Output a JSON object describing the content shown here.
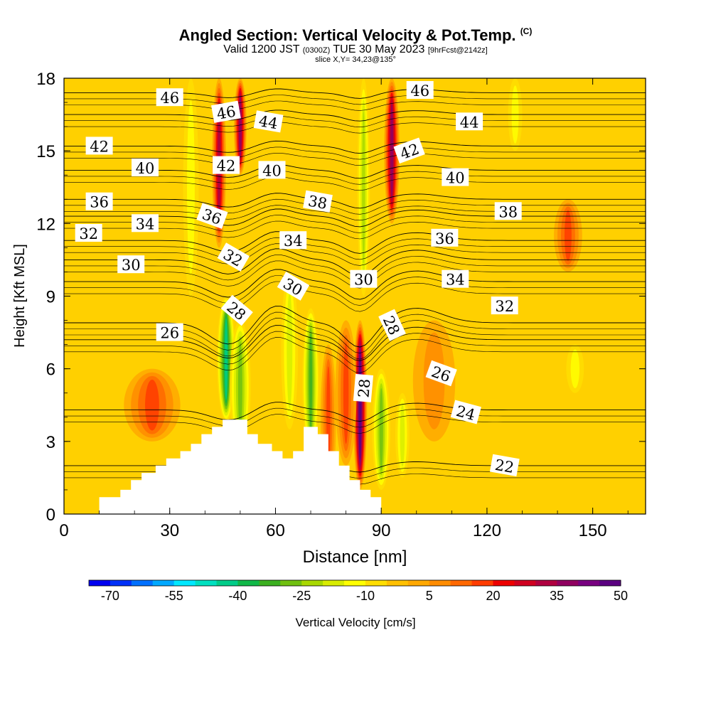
{
  "header": {
    "title": "Angled Section: Vertical Velocity & Pot.Temp.",
    "title_mark": "(C)",
    "valid_label": "Valid 1200 JST",
    "valid_utc": "(0300Z)",
    "valid_date": "TUE 30 May 2023",
    "forecast": "[9hrFcst@2142z]",
    "slice": "slice X,Y= 34,23@135°"
  },
  "chart_data": {
    "type": "heatmap",
    "xlabel": "Distance [nm]",
    "ylabel": "Height [Kft MSL]",
    "xlim": [
      0,
      165
    ],
    "ylim": [
      0,
      18
    ],
    "x_ticks": [
      0,
      30,
      60,
      90,
      120,
      150
    ],
    "y_ticks": [
      0,
      3,
      6,
      9,
      12,
      15,
      18
    ],
    "field_label": "Vertical Velocity [cm/s]",
    "colorbar": {
      "min": -70,
      "step": 5,
      "tick_labels": [
        "-70",
        "-55",
        "-40",
        "-25",
        "-10",
        "5",
        "20",
        "35",
        "50"
      ],
      "colors": [
        "#0000f0",
        "#0030f8",
        "#0070ff",
        "#00a8ff",
        "#00e8ff",
        "#00e0c0",
        "#00cc88",
        "#10b848",
        "#3cb020",
        "#70c010",
        "#a8d800",
        "#d8ec00",
        "#ffff00",
        "#ffde00",
        "#ffc000",
        "#ffa800",
        "#ff8c00",
        "#ff6800",
        "#ff3c00",
        "#ee0000",
        "#d00020",
        "#b00040",
        "#900060",
        "#780080",
        "#5a0080"
      ]
    },
    "background_level": "#ffd000",
    "velocity_features": [
      {
        "x": 36,
        "h": [
          9,
          18
        ],
        "w": 2.2,
        "v": -12
      },
      {
        "x": 46,
        "h": [
          3.8,
          9
        ],
        "w": 2.6,
        "v": -40
      },
      {
        "x": 50,
        "h": [
          2.5,
          8
        ],
        "w": 3.0,
        "v": -25
      },
      {
        "x": 44,
        "h": [
          11,
          18
        ],
        "w": 2.0,
        "v": 35
      },
      {
        "x": 50,
        "h": [
          14,
          18
        ],
        "w": 1.8,
        "v": 40
      },
      {
        "x": 64,
        "h": [
          3.5,
          10
        ],
        "w": 2.4,
        "v": -15
      },
      {
        "x": 70,
        "h": [
          2.5,
          8.5
        ],
        "w": 2.4,
        "v": -30
      },
      {
        "x": 75,
        "h": [
          1.0,
          7
        ],
        "w": 2.2,
        "v": 20
      },
      {
        "x": 84,
        "h": [
          1.0,
          8
        ],
        "w": 2.0,
        "v": 50
      },
      {
        "x": 80,
        "h": [
          2.0,
          8
        ],
        "w": 3.0,
        "v": 20
      },
      {
        "x": 90,
        "h": [
          1.0,
          6
        ],
        "w": 2.6,
        "v": -25
      },
      {
        "x": 96,
        "h": [
          1.5,
          5
        ],
        "w": 2.0,
        "v": -15
      },
      {
        "x": 85,
        "h": [
          9,
          18
        ],
        "w": 1.8,
        "v": -20
      },
      {
        "x": 93,
        "h": [
          12,
          18
        ],
        "w": 2.2,
        "v": 38
      },
      {
        "x": 105,
        "h": [
          3,
          8
        ],
        "w": 6,
        "v": 12
      },
      {
        "x": 128,
        "h": [
          15,
          18
        ],
        "w": 2,
        "v": -8
      },
      {
        "x": 145,
        "h": [
          5,
          7
        ],
        "w": 2.5,
        "v": -8
      },
      {
        "x": 143,
        "h": [
          10,
          13
        ],
        "w": 4,
        "v": 20
      },
      {
        "x": 25,
        "h": [
          3,
          6
        ],
        "w": 8,
        "v": 18
      }
    ],
    "terrain": [
      [
        0,
        0
      ],
      [
        10,
        0
      ],
      [
        10,
        0.7
      ],
      [
        16,
        0.7
      ],
      [
        16,
        1.0
      ],
      [
        19,
        1.0
      ],
      [
        19,
        1.4
      ],
      [
        22,
        1.4
      ],
      [
        22,
        1.7
      ],
      [
        26,
        1.7
      ],
      [
        26,
        2.0
      ],
      [
        29,
        2.0
      ],
      [
        29,
        2.3
      ],
      [
        33,
        2.3
      ],
      [
        33,
        2.6
      ],
      [
        36,
        2.6
      ],
      [
        36,
        2.9
      ],
      [
        39,
        2.9
      ],
      [
        39,
        3.3
      ],
      [
        42,
        3.3
      ],
      [
        42,
        3.6
      ],
      [
        45,
        3.6
      ],
      [
        45,
        3.9
      ],
      [
        52,
        3.9
      ],
      [
        52,
        3.3
      ],
      [
        55,
        3.3
      ],
      [
        55,
        2.9
      ],
      [
        59,
        2.9
      ],
      [
        59,
        2.6
      ],
      [
        62,
        2.6
      ],
      [
        62,
        2.3
      ],
      [
        65,
        2.3
      ],
      [
        65,
        2.6
      ],
      [
        68,
        2.6
      ],
      [
        68,
        3.6
      ],
      [
        72,
        3.6
      ],
      [
        72,
        3.3
      ],
      [
        75,
        3.3
      ],
      [
        75,
        2.6
      ],
      [
        78,
        2.6
      ],
      [
        78,
        2.0
      ],
      [
        81,
        2.0
      ],
      [
        81,
        1.4
      ],
      [
        84,
        1.4
      ],
      [
        84,
        1.0
      ],
      [
        87,
        1.0
      ],
      [
        87,
        0.7
      ],
      [
        90,
        0.7
      ],
      [
        90,
        0
      ]
    ],
    "isentropes": [
      {
        "label": "46",
        "y": 17.4,
        "amp": 0.35
      },
      {
        "label": "44",
        "y": 16.5,
        "amp": 0.4
      },
      {
        "label": "42",
        "y": 15.2,
        "amp": 0.45
      },
      {
        "label": "40",
        "y": 14.2,
        "amp": 0.5
      },
      {
        "label": "38",
        "y": 13.0,
        "amp": 0.55
      },
      {
        "label": "36",
        "y": 12.3,
        "amp": 0.65
      },
      {
        "label": "34",
        "y": 11.3,
        "amp": 0.8
      },
      {
        "label": "32",
        "y": 10.5,
        "amp": 1.0
      },
      {
        "label": "30",
        "y": 9.6,
        "amp": 1.1
      },
      {
        "label": "28",
        "y": 7.9,
        "amp": 1.5
      },
      {
        "label": "26",
        "y": 7.2,
        "amp": 1.3
      },
      {
        "label": "24",
        "y": 4.3,
        "amp": 0.7
      },
      {
        "label": "22",
        "y": 2.0,
        "amp": 0.4
      }
    ],
    "contour_labels": [
      {
        "text": "46",
        "x": 30,
        "y": 17.2,
        "rot": 0
      },
      {
        "text": "46",
        "x": 46,
        "y": 16.6,
        "rot": -10
      },
      {
        "text": "44",
        "x": 58,
        "y": 16.2,
        "rot": 10
      },
      {
        "text": "46",
        "x": 101,
        "y": 17.5,
        "rot": 0
      },
      {
        "text": "44",
        "x": 115,
        "y": 16.2,
        "rot": 0
      },
      {
        "text": "42",
        "x": 10,
        "y": 15.2,
        "rot": 0
      },
      {
        "text": "42",
        "x": 46,
        "y": 14.4,
        "rot": 0
      },
      {
        "text": "42",
        "x": 98,
        "y": 15.0,
        "rot": -20
      },
      {
        "text": "40",
        "x": 23,
        "y": 14.3,
        "rot": 0
      },
      {
        "text": "40",
        "x": 59,
        "y": 14.2,
        "rot": 0
      },
      {
        "text": "40",
        "x": 111,
        "y": 13.9,
        "rot": 0
      },
      {
        "text": "38",
        "x": 72,
        "y": 12.9,
        "rot": 10
      },
      {
        "text": "38",
        "x": 126,
        "y": 12.5,
        "rot": 0
      },
      {
        "text": "36",
        "x": 10,
        "y": 12.9,
        "rot": 0
      },
      {
        "text": "36",
        "x": 42,
        "y": 12.3,
        "rot": 20
      },
      {
        "text": "36",
        "x": 108,
        "y": 11.4,
        "rot": 0
      },
      {
        "text": "34",
        "x": 23,
        "y": 12.0,
        "rot": 0
      },
      {
        "text": "34",
        "x": 65,
        "y": 11.3,
        "rot": 0
      },
      {
        "text": "34",
        "x": 111,
        "y": 9.7,
        "rot": 0
      },
      {
        "text": "32",
        "x": 7,
        "y": 11.6,
        "rot": 0
      },
      {
        "text": "32",
        "x": 48,
        "y": 10.6,
        "rot": 30
      },
      {
        "text": "32",
        "x": 125,
        "y": 8.6,
        "rot": 0
      },
      {
        "text": "30",
        "x": 19,
        "y": 10.3,
        "rot": 0
      },
      {
        "text": "30",
        "x": 65,
        "y": 9.4,
        "rot": 30
      },
      {
        "text": "30",
        "x": 85,
        "y": 9.7,
        "rot": 0
      },
      {
        "text": "28",
        "x": 49,
        "y": 8.4,
        "rot": 40
      },
      {
        "text": "28",
        "x": 93,
        "y": 7.8,
        "rot": 65
      },
      {
        "text": "28",
        "x": 85,
        "y": 5.2,
        "rot": -85
      },
      {
        "text": "26",
        "x": 30,
        "y": 7.5,
        "rot": 0
      },
      {
        "text": "26",
        "x": 107,
        "y": 5.8,
        "rot": 20
      },
      {
        "text": "24",
        "x": 114,
        "y": 4.2,
        "rot": 15
      },
      {
        "text": "22",
        "x": 125,
        "y": 2.0,
        "rot": 10
      }
    ]
  }
}
